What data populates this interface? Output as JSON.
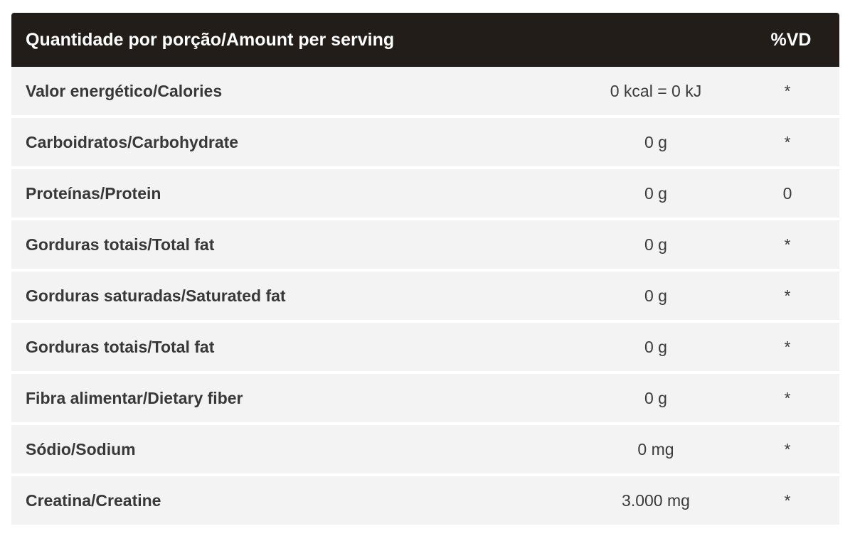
{
  "header": {
    "label": "Quantidade por porção/Amount per serving",
    "vd": "%VD"
  },
  "rows": [
    {
      "label": "Valor energético/Calories",
      "amount": "0 kcal = 0 kJ",
      "vd": "*"
    },
    {
      "label": "Carboidratos/Carbohydrate",
      "amount": "0 g",
      "vd": "*"
    },
    {
      "label": "Proteínas/Protein",
      "amount": "0 g",
      "vd": "0"
    },
    {
      "label": "Gorduras totais/Total fat",
      "amount": "0 g",
      "vd": "*"
    },
    {
      "label": "Gorduras saturadas/Saturated fat",
      "amount": "0 g",
      "vd": "*"
    },
    {
      "label": "Gorduras totais/Total fat",
      "amount": "0 g",
      "vd": "*"
    },
    {
      "label": "Fibra alimentar/Dietary fiber",
      "amount": "0 g",
      "vd": "*"
    },
    {
      "label": "Sódio/Sodium",
      "amount": "0 mg",
      "vd": "*"
    },
    {
      "label": "Creatina/Creatine",
      "amount": "3.000 mg",
      "vd": "*"
    }
  ],
  "colors": {
    "header_bg": "#231d1a",
    "row_bg": "#f3f3f3",
    "header_text": "#ffffff",
    "row_text": "#383838"
  }
}
